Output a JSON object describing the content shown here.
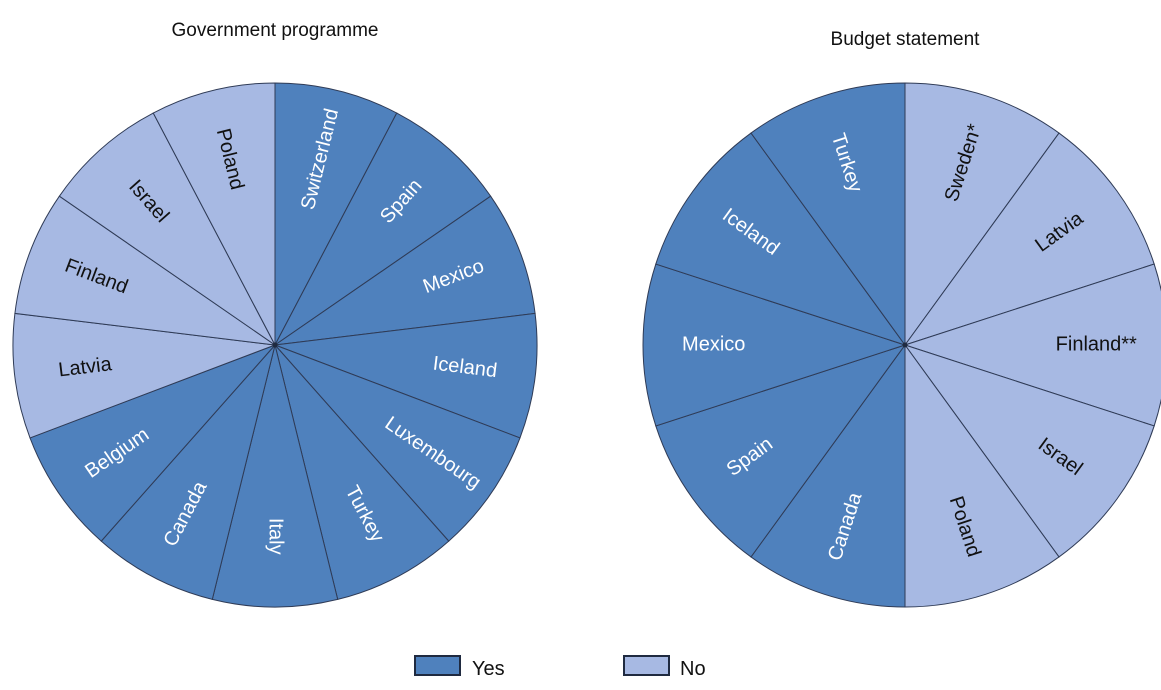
{
  "colors": {
    "yes": "#4f81bd",
    "no": "#a7b9e3",
    "yes_text": "#ffffff",
    "no_text": "#111111",
    "stroke": "#2f3b56"
  },
  "legend": {
    "items": [
      {
        "key": "yes",
        "label": "Yes"
      },
      {
        "key": "no",
        "label": "No"
      }
    ]
  },
  "chart_data": [
    {
      "type": "pie",
      "title": "Government programme",
      "start_angle_deg": 0,
      "direction": "clockwise",
      "slices": [
        {
          "label": "Switzerland",
          "value": 1,
          "category": "yes"
        },
        {
          "label": "Spain",
          "value": 1,
          "category": "yes"
        },
        {
          "label": "Mexico",
          "value": 1,
          "category": "yes"
        },
        {
          "label": "Iceland",
          "value": 1,
          "category": "yes"
        },
        {
          "label": "Luxembourg",
          "value": 1,
          "category": "yes"
        },
        {
          "label": "Turkey",
          "value": 1,
          "category": "yes"
        },
        {
          "label": "Italy",
          "value": 1,
          "category": "yes"
        },
        {
          "label": "Canada",
          "value": 1,
          "category": "yes"
        },
        {
          "label": "Belgium",
          "value": 1,
          "category": "yes"
        },
        {
          "label": "Latvia",
          "value": 1,
          "category": "no"
        },
        {
          "label": "Finland",
          "value": 1,
          "category": "no"
        },
        {
          "label": "Israel",
          "value": 1,
          "category": "no"
        },
        {
          "label": "Poland",
          "value": 1,
          "category": "no"
        }
      ]
    },
    {
      "type": "pie",
      "title": "Budget statement",
      "start_angle_deg": 0,
      "direction": "clockwise",
      "slices": [
        {
          "label": "Sweden*",
          "value": 1,
          "category": "no"
        },
        {
          "label": "Latvia",
          "value": 1,
          "category": "no"
        },
        {
          "label": "Finland**",
          "value": 1,
          "category": "no"
        },
        {
          "label": "Israel",
          "value": 1,
          "category": "no"
        },
        {
          "label": "Poland",
          "value": 1,
          "category": "no"
        },
        {
          "label": "Canada",
          "value": 1,
          "category": "yes"
        },
        {
          "label": "Spain",
          "value": 1,
          "category": "yes"
        },
        {
          "label": "Mexico",
          "value": 1,
          "category": "yes"
        },
        {
          "label": "Iceland",
          "value": 1,
          "category": "yes"
        },
        {
          "label": "Turkey",
          "value": 1,
          "category": "yes"
        }
      ]
    }
  ]
}
